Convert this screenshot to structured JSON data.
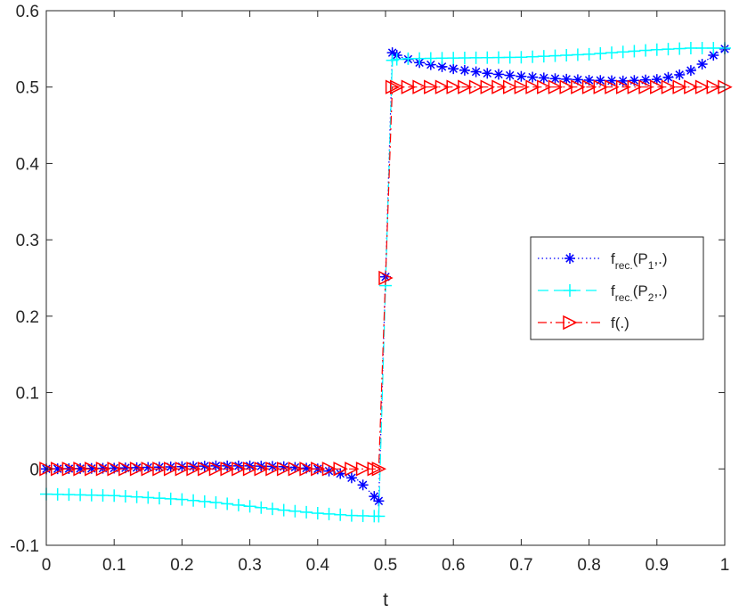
{
  "chart_data": {
    "type": "line",
    "title": "",
    "xlabel": "t",
    "ylabel": "",
    "xlim": [
      0,
      1
    ],
    "ylim": [
      -0.1,
      0.6
    ],
    "xticks": [
      "0",
      "0.1",
      "0.2",
      "0.3",
      "0.4",
      "0.5",
      "0.6",
      "0.7",
      "0.8",
      "0.9",
      "1"
    ],
    "yticks": [
      "-0.1",
      "0",
      "0.1",
      "0.2",
      "0.3",
      "0.4",
      "0.5",
      "0.6"
    ],
    "legend_position": "right",
    "series": [
      {
        "name": "f_rec.(P_1,.)",
        "legend_main": "f",
        "legend_sub1": "rec.",
        "legend_mid": "(P",
        "legend_sub2": "1",
        "legend_end": ",.)",
        "color": "#0000ff",
        "linestyle": "dotted",
        "marker": "asterisk",
        "knots_x": [
          0,
          0.1,
          0.2,
          0.25,
          0.3,
          0.35,
          0.4,
          0.43,
          0.46,
          0.49,
          0.51,
          0.52,
          0.55,
          0.6,
          0.65,
          0.7,
          0.75,
          0.8,
          0.85,
          0.9,
          0.93,
          0.96,
          0.98,
          1.0
        ],
        "knots_y": [
          0,
          0.001,
          0.003,
          0.004,
          0.004,
          0.003,
          0.0,
          -0.005,
          -0.015,
          -0.042,
          0.545,
          0.54,
          0.532,
          0.524,
          0.518,
          0.514,
          0.511,
          0.509,
          0.508,
          0.51,
          0.515,
          0.525,
          0.54,
          0.55
        ]
      },
      {
        "name": "f_rec.(P_2,.)",
        "legend_main": "f",
        "legend_sub1": "rec.",
        "legend_mid": "(P",
        "legend_sub2": "2",
        "legend_end": ",.)",
        "color": "#00ffff",
        "linestyle": "dashed",
        "marker": "plus",
        "knots_x": [
          0,
          0.1,
          0.2,
          0.25,
          0.3,
          0.35,
          0.4,
          0.45,
          0.49,
          0.5,
          0.51,
          0.52,
          0.6,
          0.7,
          0.8,
          0.9,
          0.95,
          1.0
        ],
        "knots_y": [
          -0.033,
          -0.035,
          -0.04,
          -0.044,
          -0.049,
          -0.054,
          -0.058,
          -0.061,
          -0.062,
          0.24,
          0.535,
          0.537,
          0.538,
          0.539,
          0.543,
          0.549,
          0.551,
          0.551
        ]
      },
      {
        "name": "f(.)",
        "legend_main": "f(.)",
        "legend_sub1": "",
        "legend_mid": "",
        "legend_sub2": "",
        "legend_end": "",
        "color": "#ff0000",
        "linestyle": "dashdot",
        "marker": "triangle-right",
        "knots_x": [
          0,
          0.49,
          0.5,
          0.51,
          1.0
        ],
        "knots_y": [
          0,
          0,
          0.25,
          0.5,
          0.5
        ]
      }
    ]
  }
}
